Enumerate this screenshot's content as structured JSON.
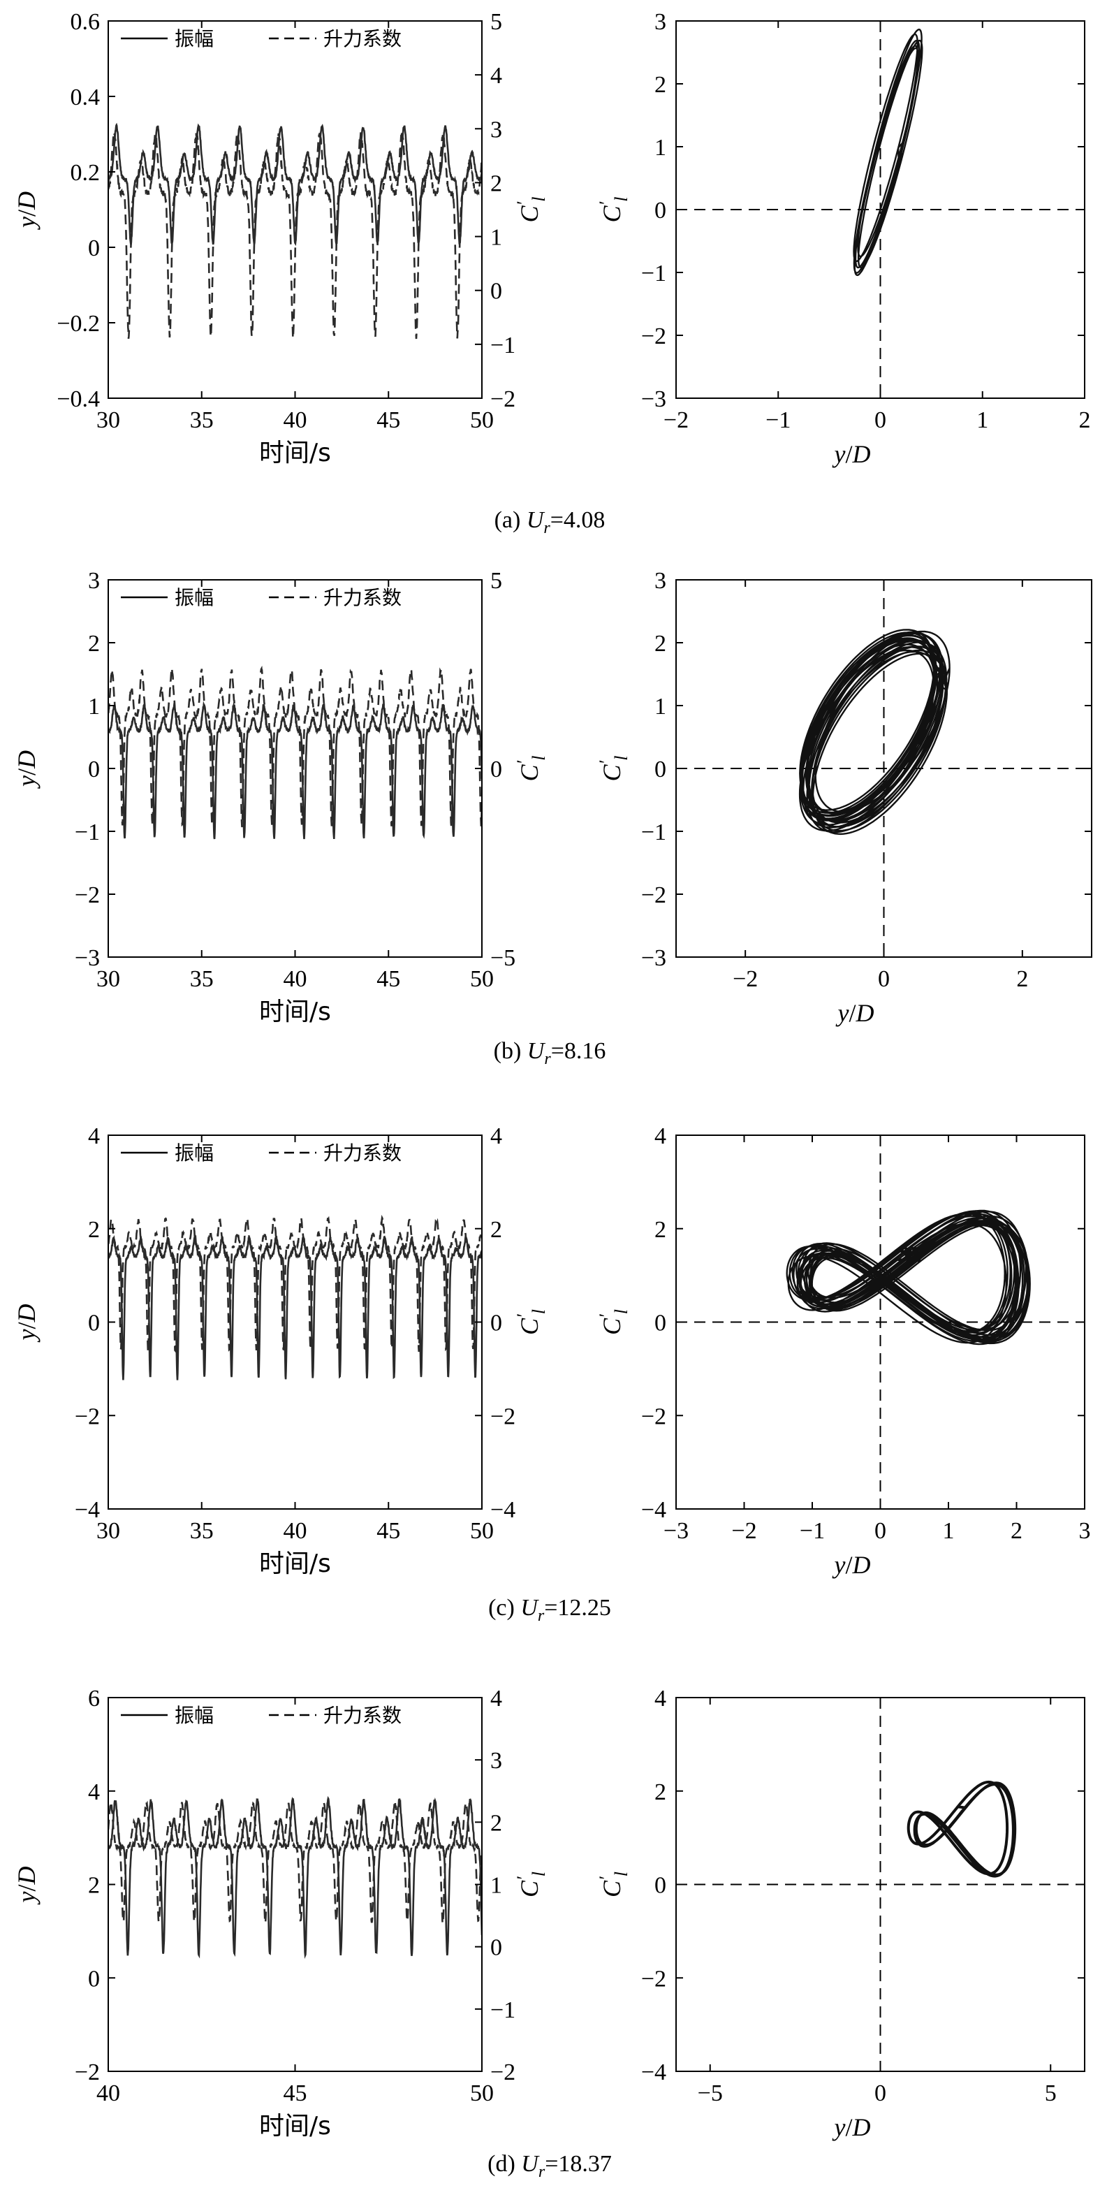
{
  "figure": {
    "x_label_time": "时间/s",
    "x_label_yd": "y/D",
    "y_label_yd": "y/D",
    "y_label_cl": "C′l",
    "legend": {
      "amplitude": "振幅",
      "lift": "升力系数"
    }
  },
  "chart_data": [
    {
      "panel": "a",
      "type": "line",
      "caption": "(a) Ur=4.08",
      "x_range": [
        30,
        50
      ],
      "x_ticks": [
        30,
        35,
        40,
        45,
        50
      ],
      "y_left_range": [
        -0.4,
        0.6
      ],
      "y_left_ticks": [
        -0.4,
        -0.2,
        0,
        0.2,
        0.4,
        0.6
      ],
      "y_right_range": [
        -2,
        5
      ],
      "y_right_ticks": [
        -2,
        -1,
        0,
        1,
        2,
        3,
        4,
        5
      ],
      "legend_position": "top",
      "series": [
        {
          "name": "振幅",
          "style": "solid",
          "axis": "left",
          "period": 2.2,
          "baseline": 0.18,
          "peak": 0.32,
          "trough": 0.01,
          "secondary_peak": 0.25
        },
        {
          "name": "升力系数",
          "style": "dashed",
          "axis": "right",
          "period": 2.2,
          "baseline": 1.8,
          "peak": 2.9,
          "trough": -0.85,
          "secondary_peak": 2.4
        }
      ]
    },
    {
      "panel": "a",
      "type": "scatter",
      "caption": "(a) Ur=4.08",
      "x_range": [
        -2,
        2
      ],
      "x_ticks": [
        -2,
        -1,
        0,
        1,
        2
      ],
      "y_range": [
        -3,
        3
      ],
      "y_ticks": [
        -3,
        -2,
        -1,
        0,
        1,
        2,
        3
      ],
      "trajectory_extent": {
        "x": [
          -0.15,
          0.3
        ],
        "y": [
          -1.0,
          2.8
        ]
      }
    },
    {
      "panel": "b",
      "type": "line",
      "caption": "(b) Ur=8.16",
      "x_range": [
        30,
        50
      ],
      "x_ticks": [
        30,
        35,
        40,
        45,
        50
      ],
      "y_left_range": [
        -3,
        3
      ],
      "y_left_ticks": [
        -3,
        -2,
        -1,
        0,
        1,
        2,
        3
      ],
      "y_right_range": [
        -5,
        5
      ],
      "y_right_ticks": [
        -5,
        0,
        5
      ],
      "legend_position": "top",
      "series": [
        {
          "name": "振幅",
          "style": "solid",
          "axis": "left",
          "period": 1.6,
          "baseline": 0.6,
          "peak": 1.0,
          "trough": -1.1,
          "secondary_peak": 0.8
        },
        {
          "name": "升力系数",
          "style": "dashed",
          "axis": "right",
          "period": 1.6,
          "baseline": 1.4,
          "peak": 2.6,
          "trough": -1.5,
          "secondary_peak": 2.1
        }
      ]
    },
    {
      "panel": "b",
      "type": "scatter",
      "caption": "(b) Ur=8.16",
      "x_range": [
        -3,
        3
      ],
      "x_ticks": [
        -2,
        0,
        2
      ],
      "y_range": [
        -3,
        3
      ],
      "y_ticks": [
        -3,
        -2,
        -1,
        0,
        1,
        2,
        3
      ],
      "trajectory_extent": {
        "x": [
          -1.2,
          0.95
        ],
        "y": [
          -1.5,
          2.7
        ]
      }
    },
    {
      "panel": "c",
      "type": "line",
      "caption": "(c) Ur=12.25",
      "x_range": [
        30,
        50
      ],
      "x_ticks": [
        30,
        35,
        40,
        45,
        50
      ],
      "y_left_range": [
        -4,
        4
      ],
      "y_left_ticks": [
        -4,
        -2,
        0,
        2,
        4
      ],
      "y_right_range": [
        -4,
        4
      ],
      "y_right_ticks": [
        -4,
        -2,
        0,
        2,
        4
      ],
      "legend_position": "top",
      "series": [
        {
          "name": "振幅",
          "style": "solid",
          "axis": "left",
          "period": 1.45,
          "baseline": 1.4,
          "peak": 1.8,
          "trough": -1.2,
          "secondary_peak": 1.6
        },
        {
          "name": "升力系数",
          "style": "dashed",
          "axis": "right",
          "period": 1.45,
          "baseline": 1.6,
          "peak": 2.2,
          "trough": -0.6,
          "secondary_peak": 1.9
        }
      ]
    },
    {
      "panel": "c",
      "type": "scatter",
      "caption": "(c) Ur=12.25",
      "x_range": [
        -3,
        3
      ],
      "x_ticks": [
        -3,
        -2,
        -1,
        0,
        1,
        2,
        3
      ],
      "y_range": [
        -4,
        4
      ],
      "y_ticks": [
        -4,
        -2,
        0,
        2,
        4
      ],
      "trajectory_extent": {
        "x": [
          -1.2,
          2.0
        ],
        "y": [
          -0.7,
          2.6
        ]
      }
    },
    {
      "panel": "d",
      "type": "line",
      "caption": "(d) Ur=18.37",
      "x_range": [
        40,
        50
      ],
      "x_ticks": [
        40,
        45,
        50
      ],
      "y_left_range": [
        -2,
        6
      ],
      "y_left_ticks": [
        -2,
        0,
        2,
        4,
        6
      ],
      "y_right_range": [
        -2,
        4
      ],
      "y_right_ticks": [
        -2,
        -1,
        0,
        1,
        2,
        3,
        4
      ],
      "legend_position": "top",
      "series": [
        {
          "name": "振幅",
          "style": "solid",
          "axis": "left",
          "period": 0.95,
          "baseline": 2.8,
          "peak": 3.8,
          "trough": 0.5,
          "secondary_peak": 3.4
        },
        {
          "name": "升力系数",
          "style": "dashed",
          "axis": "right",
          "period": 0.95,
          "baseline": 1.6,
          "peak": 2.3,
          "trough": 0.4,
          "secondary_peak": 2.0
        }
      ]
    },
    {
      "panel": "d",
      "type": "scatter",
      "caption": "(d) Ur=18.37",
      "x_range": [
        -6,
        6
      ],
      "x_ticks": [
        -5,
        0,
        5
      ],
      "y_range": [
        -4,
        4
      ],
      "y_ticks": [
        -4,
        -2,
        0,
        2,
        4
      ],
      "trajectory_extent": {
        "x": [
          0.9,
          3.8
        ],
        "y": [
          -0.2,
          2.4
        ]
      }
    }
  ],
  "captions": [
    {
      "prefix": "(a) ",
      "var": "U",
      "sub": "r",
      "value": "=4.08"
    },
    {
      "prefix": "(b) ",
      "var": "U",
      "sub": "r",
      "value": "=8.16"
    },
    {
      "prefix": "(c) ",
      "var": "U",
      "sub": "r",
      "value": "=12.25"
    },
    {
      "prefix": "(d) ",
      "var": "U",
      "sub": "r",
      "value": "=18.37"
    }
  ]
}
